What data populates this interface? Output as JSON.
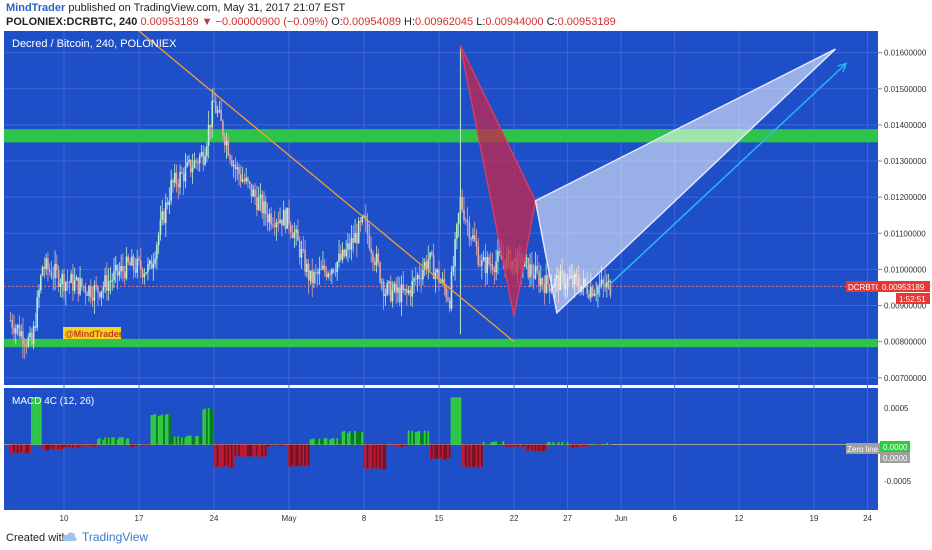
{
  "header": {
    "author": "MindTrader",
    "published_text": "published on TradingView.com, May 31, 2017 21:07 EST",
    "symbol": "POLONIEX:DCRBTC, 240",
    "last": "0.00953189",
    "change_arrow": "▼",
    "change": "−0.00000900 (−0.09%)",
    "o_label": "O:",
    "o": "0.00954089",
    "h_label": "H:",
    "h": "0.00962045",
    "l_label": "L:",
    "l": "0.00944000",
    "c_label": "C:",
    "c": "0.00953189"
  },
  "main_pane": {
    "title": "Decred / Bitcoin, 240, POLONIEX",
    "watermark_badge": "@MindTrader",
    "price_tag_symbol": "DCRBTC",
    "price_tag_value": "0.00953189",
    "countdown": "1:52:51"
  },
  "macd_pane": {
    "title": "MACD 4C (12, 26)",
    "zero_line_label": "Zero line",
    "value_green": "0.0000",
    "value_gray": "0.0000"
  },
  "footer": {
    "created_with": "Created with",
    "brand": "TradingView"
  },
  "colors": {
    "background": "#1e4fc9",
    "green_band": "#2ec44a",
    "bull_candle": "#b9f0ce",
    "bear_candle": "#e3a7a7",
    "trendline": "#f0a030",
    "red_triangle": "#c0284f",
    "white_triangle": "#ffffff",
    "target_arrow": "#29b6f6",
    "macd_green": "#2ecc40",
    "macd_dark_green": "#0a7a20",
    "macd_red": "#c01830",
    "macd_dark_red": "#7a1020"
  },
  "chart_data": {
    "type": "candlestick",
    "title": "Decred / Bitcoin, 240, POLONIEX",
    "x_ticks": [
      "10",
      "17",
      "24",
      "May",
      "8",
      "15",
      "22",
      "27",
      "Jun",
      "6",
      "12",
      "19",
      "24"
    ],
    "y_ticks": [
      "0.01600000",
      "0.01500000",
      "0.01400000",
      "0.01300000",
      "0.01200000",
      "0.01100000",
      "0.01000000",
      "0.00900000",
      "0.00800000",
      "0.00700000"
    ],
    "ylim": [
      0.0068,
      0.0166
    ],
    "price_series_approx": [
      {
        "x": "Apr 5",
        "y": 0.0086
      },
      {
        "x": "Apr 7",
        "y": 0.0079
      },
      {
        "x": "Apr 8",
        "y": 0.0101
      },
      {
        "x": "Apr 10",
        "y": 0.0097
      },
      {
        "x": "Apr 13",
        "y": 0.0094
      },
      {
        "x": "Apr 16",
        "y": 0.0101
      },
      {
        "x": "Apr 18",
        "y": 0.01
      },
      {
        "x": "Apr 20",
        "y": 0.0123
      },
      {
        "x": "Apr 23",
        "y": 0.0132
      },
      {
        "x": "Apr 24",
        "y": 0.0146
      },
      {
        "x": "Apr 26",
        "y": 0.0128
      },
      {
        "x": "Apr 29",
        "y": 0.0115
      },
      {
        "x": "May 1",
        "y": 0.0114
      },
      {
        "x": "May 3",
        "y": 0.0097
      },
      {
        "x": "May 6",
        "y": 0.0103
      },
      {
        "x": "May 8",
        "y": 0.0113
      },
      {
        "x": "May 10",
        "y": 0.0094
      },
      {
        "x": "May 12",
        "y": 0.0093
      },
      {
        "x": "May 14",
        "y": 0.0103
      },
      {
        "x": "May 16",
        "y": 0.0092
      },
      {
        "x": "May 17",
        "y": 0.0119
      },
      {
        "x": "May 19",
        "y": 0.0101
      },
      {
        "x": "May 21",
        "y": 0.0103
      },
      {
        "x": "May 23",
        "y": 0.0101
      },
      {
        "x": "May 25",
        "y": 0.0096
      },
      {
        "x": "May 27",
        "y": 0.0097
      },
      {
        "x": "May 29",
        "y": 0.0095
      },
      {
        "x": "May 31",
        "y": 0.00953
      }
    ],
    "annotations": {
      "resistance_band": [
        0.0136,
        0.0138
      ],
      "support_band": [
        0.00793,
        0.00805
      ],
      "trendline": [
        {
          "x": "Apr 17",
          "y": 0.0166
        },
        {
          "x": "May 22",
          "y": 0.008
        }
      ],
      "red_triangle": [
        {
          "x": "May 17",
          "y": 0.0162
        },
        {
          "x": "May 22",
          "y": 0.0087
        },
        {
          "x": "May 24",
          "y": 0.0119
        }
      ],
      "white_triangle": [
        {
          "x": "May 24",
          "y": 0.0119
        },
        {
          "x": "May 26",
          "y": 0.0088
        },
        {
          "x": "Jun 21",
          "y": 0.0161
        }
      ],
      "target_arrow": [
        {
          "x": "May 31",
          "y": 0.0096
        },
        {
          "x": "Jun 22",
          "y": 0.0157
        }
      ]
    },
    "macd": {
      "title": "MACD 4C (12, 26)",
      "y_ticks": [
        "0.0005",
        "0.0000",
        "-0.0005"
      ],
      "ylim": [
        -0.0009,
        0.00075
      ]
    }
  }
}
